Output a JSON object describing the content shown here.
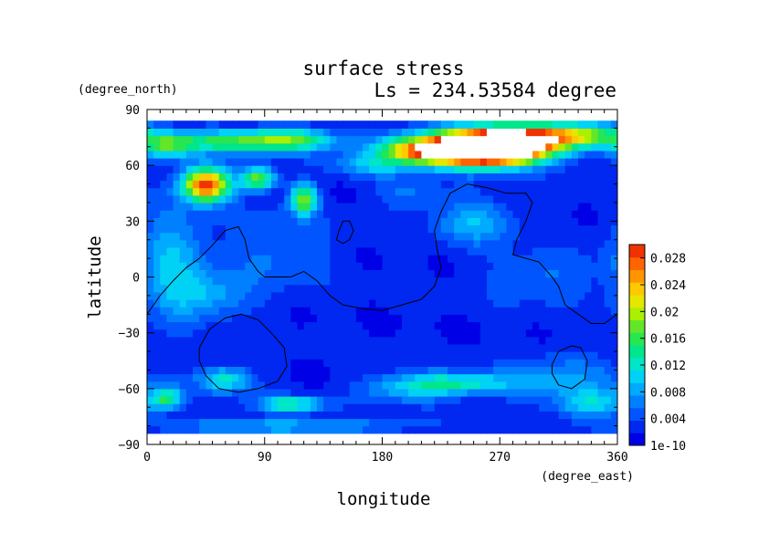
{
  "chart_data": {
    "type": "heatmap",
    "title": "surface stress",
    "subtitle": "Ls = 234.53584 degree",
    "xlabel": "longitude",
    "ylabel": "latitude",
    "x_units": "(degree_east)",
    "y_units": "(degree_north)",
    "xlim": [
      0,
      360
    ],
    "ylim": [
      -90,
      90
    ],
    "x_ticks": [
      0,
      90,
      180,
      270,
      360
    ],
    "y_ticks": [
      -90,
      -60,
      -30,
      0,
      30,
      60,
      90
    ],
    "grid": false,
    "data_lat_range": [
      -84,
      84
    ],
    "colorbar": {
      "tick_labels": [
        "1e-10",
        "0.004",
        "0.008",
        "0.012",
        "0.016",
        "0.02",
        "0.024",
        "0.028"
      ],
      "tick_values": [
        0,
        0.004,
        0.008,
        0.012,
        0.016,
        0.02,
        0.024,
        0.028
      ],
      "range": [
        0,
        0.03
      ],
      "colors": [
        "#0000e6",
        "#0028f0",
        "#0055ff",
        "#0080ff",
        "#00aaff",
        "#00d2f5",
        "#00e6c8",
        "#00e68c",
        "#28e650",
        "#64e628",
        "#aaf000",
        "#e6e600",
        "#ffc800",
        "#ff9600",
        "#ff6400",
        "#f03200"
      ]
    },
    "features": [
      {
        "lon": 265,
        "lat": 70,
        "rlon": 40,
        "rlat": 9,
        "value": 0.034
      },
      {
        "lon": 240,
        "lat": 69,
        "rlon": 55,
        "rlat": 9,
        "value": 0.022
      },
      {
        "lon": 300,
        "lat": 75,
        "rlon": 45,
        "rlat": 7,
        "value": 0.014
      },
      {
        "lon": 330,
        "lat": 77,
        "rlon": 35,
        "rlat": 6,
        "value": 0.01
      },
      {
        "lon": 205,
        "lat": 68,
        "rlon": 25,
        "rlat": 6,
        "value": 0.01
      },
      {
        "lon": 60,
        "lat": 73,
        "rlon": 50,
        "rlat": 6,
        "value": 0.012
      },
      {
        "lon": 110,
        "lat": 74,
        "rlon": 35,
        "rlat": 6,
        "value": 0.012
      },
      {
        "lon": 15,
        "lat": 70,
        "rlon": 20,
        "rlat": 7,
        "value": 0.01
      },
      {
        "lon": 45,
        "lat": 50,
        "rlon": 18,
        "rlat": 9,
        "value": 0.027
      },
      {
        "lon": 85,
        "lat": 53,
        "rlon": 13,
        "rlat": 6,
        "value": 0.016
      },
      {
        "lon": 120,
        "lat": 42,
        "rlon": 10,
        "rlat": 8,
        "value": 0.016
      },
      {
        "lon": 170,
        "lat": 60,
        "rlon": 30,
        "rlat": 6,
        "value": 0.006
      },
      {
        "lon": 250,
        "lat": 30,
        "rlon": 30,
        "rlat": 12,
        "value": 0.007
      },
      {
        "lon": 200,
        "lat": 45,
        "rlon": 25,
        "rlat": 8,
        "value": 0.004
      },
      {
        "lon": 20,
        "lat": 10,
        "rlon": 25,
        "rlat": 28,
        "value": 0.007
      },
      {
        "lon": 45,
        "lat": -10,
        "rlon": 35,
        "rlat": 12,
        "value": 0.006
      },
      {
        "lon": 100,
        "lat": 15,
        "rlon": 40,
        "rlat": 20,
        "value": 0.004
      },
      {
        "lon": 300,
        "lat": 0,
        "rlon": 40,
        "rlat": 14,
        "value": 0.004
      },
      {
        "lon": 60,
        "lat": -55,
        "rlon": 20,
        "rlat": 7,
        "value": 0.01
      },
      {
        "lon": 15,
        "lat": -65,
        "rlon": 12,
        "rlat": 6,
        "value": 0.012
      },
      {
        "lon": 110,
        "lat": -68,
        "rlon": 25,
        "rlat": 4,
        "value": 0.012
      },
      {
        "lon": 240,
        "lat": -57,
        "rlon": 45,
        "rlat": 6,
        "value": 0.01
      },
      {
        "lon": 200,
        "lat": -60,
        "rlon": 35,
        "rlat": 8,
        "value": 0.006
      },
      {
        "lon": 320,
        "lat": -55,
        "rlon": 45,
        "rlat": 14,
        "value": 0.005
      },
      {
        "lon": 340,
        "lat": -68,
        "rlon": 25,
        "rlat": 7,
        "value": 0.008
      },
      {
        "lon": 100,
        "lat": -80,
        "rlon": 90,
        "rlat": 4,
        "value": 0.007
      }
    ],
    "contours": [
      [
        [
          0,
          -20
        ],
        [
          10,
          -10
        ],
        [
          20,
          -2
        ],
        [
          30,
          5
        ],
        [
          40,
          10
        ],
        [
          50,
          17
        ],
        [
          60,
          25
        ],
        [
          70,
          27
        ],
        [
          75,
          20
        ],
        [
          78,
          10
        ],
        [
          85,
          3
        ],
        [
          90,
          0
        ],
        [
          100,
          0
        ],
        [
          110,
          0
        ],
        [
          120,
          3
        ],
        [
          130,
          -2
        ],
        [
          140,
          -10
        ],
        [
          150,
          -15
        ],
        [
          165,
          -17
        ],
        [
          180,
          -18
        ],
        [
          195,
          -15
        ],
        [
          210,
          -12
        ],
        [
          220,
          -5
        ],
        [
          225,
          5
        ],
        [
          222,
          15
        ],
        [
          220,
          25
        ],
        [
          225,
          35
        ],
        [
          232,
          45
        ],
        [
          245,
          50
        ],
        [
          260,
          48
        ],
        [
          275,
          45
        ],
        [
          290,
          45
        ],
        [
          295,
          40
        ],
        [
          290,
          30
        ],
        [
          283,
          20
        ],
        [
          280,
          12
        ],
        [
          290,
          10
        ],
        [
          300,
          8
        ],
        [
          310,
          0
        ],
        [
          315,
          -5
        ],
        [
          320,
          -15
        ],
        [
          330,
          -20
        ],
        [
          340,
          -25
        ],
        [
          350,
          -25
        ],
        [
          360,
          -20
        ]
      ],
      [
        [
          145,
          20
        ],
        [
          150,
          18
        ],
        [
          155,
          20
        ],
        [
          158,
          25
        ],
        [
          155,
          30
        ],
        [
          150,
          30
        ],
        [
          147,
          25
        ],
        [
          145,
          20
        ]
      ],
      [
        [
          40,
          -38
        ],
        [
          48,
          -28
        ],
        [
          60,
          -22
        ],
        [
          72,
          -20
        ],
        [
          85,
          -23
        ],
        [
          95,
          -30
        ],
        [
          105,
          -38
        ],
        [
          107,
          -48
        ],
        [
          100,
          -56
        ],
        [
          85,
          -60
        ],
        [
          70,
          -62
        ],
        [
          55,
          -60
        ],
        [
          45,
          -53
        ],
        [
          40,
          -45
        ],
        [
          40,
          -38
        ]
      ],
      [
        [
          310,
          -47
        ],
        [
          315,
          -40
        ],
        [
          325,
          -37
        ],
        [
          332,
          -38
        ],
        [
          337,
          -45
        ],
        [
          335,
          -55
        ],
        [
          325,
          -60
        ],
        [
          315,
          -58
        ],
        [
          310,
          -52
        ],
        [
          310,
          -47
        ]
      ]
    ]
  }
}
